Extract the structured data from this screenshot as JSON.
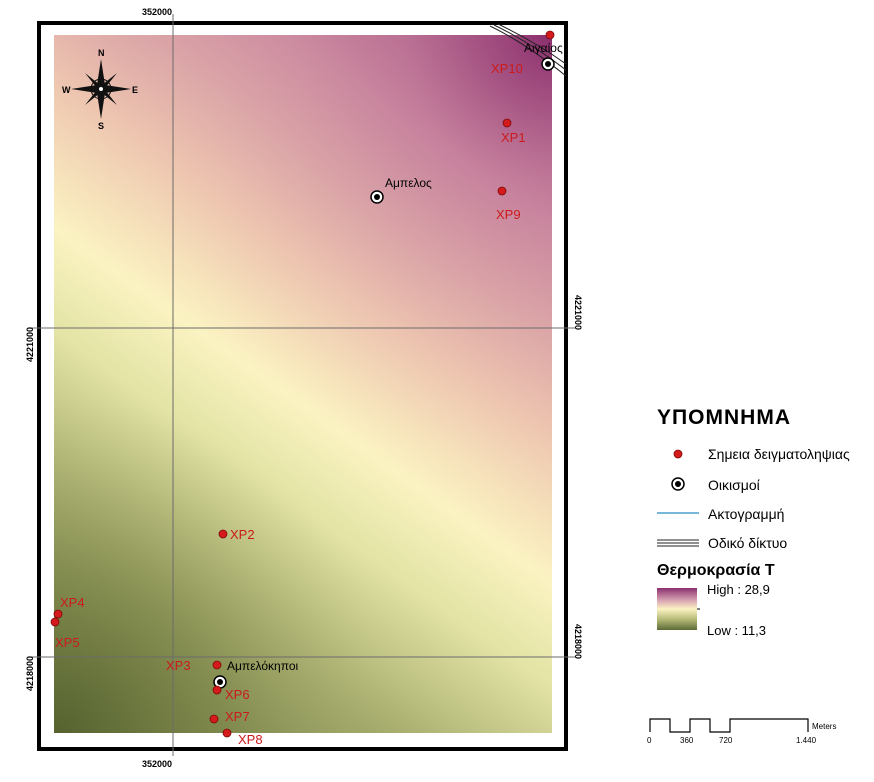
{
  "map": {
    "coord_labels": {
      "top_x": "352000",
      "bottom_x": "352000",
      "left_y_upper": "4221000",
      "left_y_lower": "4218000",
      "right_y_upper": "4221000",
      "right_y_lower": "4218000"
    },
    "north_arrow": {
      "n": "N",
      "s": "S",
      "e": "E",
      "w": "W"
    },
    "sample_points": [
      {
        "label": "XP10"
      },
      {
        "label": "XP1"
      },
      {
        "label": "XP9"
      },
      {
        "label": "XP2"
      },
      {
        "label": "XP4"
      },
      {
        "label": "XP5"
      },
      {
        "label": "XP3"
      },
      {
        "label": "XP6"
      },
      {
        "label": "XP7"
      },
      {
        "label": "XP8"
      }
    ],
    "settlements": [
      {
        "label": "Αιγαίος"
      },
      {
        "label": "Αμπελος"
      },
      {
        "label": "Αμπελόκηποι"
      }
    ],
    "colors": {
      "high": "#8b2f6e",
      "mid": "#fafab9",
      "low": "#5c6a35",
      "point": "#d41a1a",
      "label": "#cc1a1a",
      "coastline": "#4a9fcf"
    }
  },
  "legend": {
    "title": "ΥΠΟΜΝΗΜΑ",
    "items": [
      {
        "icon": "red-dot-icon",
        "label": "Σημεια δειγματοληψιας"
      },
      {
        "icon": "settlement-icon",
        "label": "Οικισμοί"
      },
      {
        "icon": "blue-line-icon",
        "label": "Ακτογραμμή"
      },
      {
        "icon": "road-network-icon",
        "label": "Οδικό δίκτυο"
      }
    ],
    "ramp_title": "Θερμοκρασία Τ",
    "high_label": "High : 28,9",
    "low_label": "Low : 11,3"
  },
  "scale_bar": {
    "unit": "Meters",
    "ticks": [
      "0",
      "360",
      "720",
      "1.440"
    ]
  }
}
